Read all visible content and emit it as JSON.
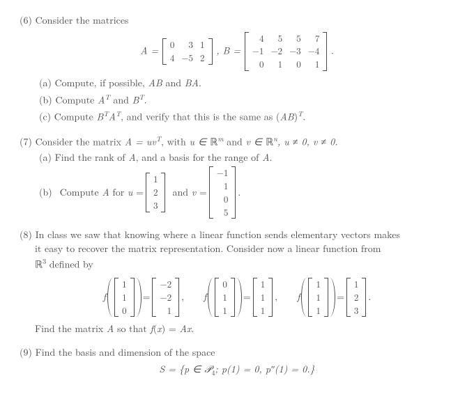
{
  "p6": {
    "label": "(6)",
    "intro": "Consider the matrices",
    "A_eq_lhs": "A =",
    "B_eq_lhs": ", B =",
    "dot": ".",
    "A": {
      "rows": [
        [
          "0",
          "3",
          "1"
        ],
        [
          "4",
          "−5",
          "2"
        ]
      ]
    },
    "B": {
      "rows": [
        [
          "4",
          "5",
          "5",
          "7"
        ],
        [
          "−1",
          "−2",
          "−3",
          "−4"
        ],
        [
          "0",
          "1",
          "0",
          "1"
        ]
      ]
    },
    "a_label": "(a)",
    "a_text": "Compute, if possible, AB and BA.",
    "b_label": "(b)",
    "b_text_pre": "Compute ",
    "b_AT": "A",
    "b_AT_sup": "T",
    "b_and": " and ",
    "b_BT": "B",
    "b_BT_sup": "T",
    "b_dot": ".",
    "c_label": "(c)",
    "c_pre": "Compute ",
    "c_BTAT1": "B",
    "c_BTAT1s": "T",
    "c_BTAT2": "A",
    "c_BTAT2s": "T",
    "c_mid": ", and verify that this is the same as (",
    "c_AB": "AB",
    "c_sup": "T",
    "c_end": ")"
  },
  "p7": {
    "label": "(7)",
    "intro_pre": "Consider the matrix ",
    "A_eq": "A = uv",
    "A_sup": "T",
    "intro_mid": ", with ",
    "u_in": "u ∈ ",
    "Rm": "ℝ",
    "m": "m",
    "and": " and ",
    "v_in": "v ∈ ",
    "Rn": "ℝ",
    "n": "n",
    "cond": ", u ≠ 0, v ≠ 0.",
    "a_label": "(a)",
    "a_text": "Find the rank of A, and a basis for the range of A.",
    "b_label": "(b)",
    "b_pre": "Compute A for u = ",
    "u": {
      "rows": [
        [
          "1"
        ],
        [
          "2"
        ],
        [
          "3"
        ]
      ]
    },
    "b_mid": " and v = ",
    "v": {
      "rows": [
        [
          "−1"
        ],
        [
          "1"
        ],
        [
          "0"
        ],
        [
          "5"
        ]
      ]
    },
    "b_dot": "."
  },
  "p8": {
    "label": "(8)",
    "line1": "In class we saw that knowing where a linear function sends elementary vectors makes",
    "line2": "it easy to recover the matrix representation.  Consider now a linear function from",
    "line3_pre": "ℝ",
    "line3_sup": "3",
    "line3_post": " defined by",
    "f": "f",
    "m1a": {
      "rows": [
        [
          "1"
        ],
        [
          "1"
        ],
        [
          "0"
        ]
      ]
    },
    "eq": " = ",
    "m1b": {
      "rows": [
        [
          "−2"
        ],
        [
          "−2"
        ],
        [
          "1"
        ]
      ]
    },
    "comma": ",",
    "m2a": {
      "rows": [
        [
          "0"
        ],
        [
          "1"
        ],
        [
          "1"
        ]
      ]
    },
    "m2b": {
      "rows": [
        [
          "1"
        ],
        [
          "1"
        ],
        [
          "1"
        ]
      ]
    },
    "m3a": {
      "rows": [
        [
          "1"
        ],
        [
          "1"
        ],
        [
          "1"
        ]
      ]
    },
    "m3b": {
      "rows": [
        [
          "1"
        ],
        [
          "2"
        ],
        [
          "3"
        ]
      ]
    },
    "dot": ".",
    "last": "Find the matrix A so that f(x) = Ax."
  },
  "p9": {
    "label": "(9)",
    "text": "Find the basis and dimension of the space",
    "set_pre": "S = {p ∈ ",
    "P": "𝒫",
    "P_sub": "4",
    "set_mid": ";    p(1) = 0, p″(1) = 0.}"
  }
}
